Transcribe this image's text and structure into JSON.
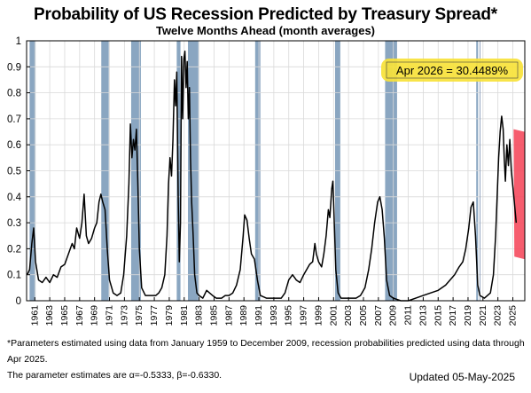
{
  "chart_data": {
    "type": "line",
    "title": "Probability of US Recession Predicted by Treasury Spread*",
    "subtitle": "Twelve Months Ahead (month averages)",
    "xlim": [
      1959.9,
      2026.6
    ],
    "ylim": [
      0,
      1
    ],
    "yticks": [
      "0",
      "0.1",
      "0.2",
      "0.3",
      "0.4",
      "0.5",
      "0.6",
      "0.7",
      "0.8",
      "0.9",
      "1"
    ],
    "xticks": [
      "1961",
      "1963",
      "1965",
      "1967",
      "1969",
      "1971",
      "1973",
      "1975",
      "1977",
      "1979",
      "1981",
      "1983",
      "1985",
      "1987",
      "1989",
      "1991",
      "1993",
      "1995",
      "1997",
      "1999",
      "2001",
      "2003",
      "2005",
      "2007",
      "2009",
      "2011",
      "2013",
      "2015",
      "2017",
      "2019",
      "2021",
      "2023",
      "2025"
    ],
    "grid": true,
    "recessions": [
      [
        1960.3,
        1961.1
      ],
      [
        1969.9,
        1970.9
      ],
      [
        1973.9,
        1975.2
      ],
      [
        1980.0,
        1980.5
      ],
      [
        1981.5,
        1982.9
      ],
      [
        1990.5,
        1991.2
      ],
      [
        2001.2,
        2001.9
      ],
      [
        2007.9,
        2009.5
      ],
      [
        2020.1,
        2020.35
      ]
    ],
    "series": [
      {
        "color": "#000000",
        "points": [
          [
            1960.0,
            0.1
          ],
          [
            1960.3,
            0.12
          ],
          [
            1960.6,
            0.22
          ],
          [
            1960.85,
            0.28
          ],
          [
            1961.1,
            0.15
          ],
          [
            1961.5,
            0.08
          ],
          [
            1962.0,
            0.07
          ],
          [
            1962.5,
            0.09
          ],
          [
            1963.0,
            0.07
          ],
          [
            1963.5,
            0.1
          ],
          [
            1964.0,
            0.09
          ],
          [
            1964.5,
            0.13
          ],
          [
            1965.0,
            0.14
          ],
          [
            1965.5,
            0.18
          ],
          [
            1966.0,
            0.22
          ],
          [
            1966.3,
            0.2
          ],
          [
            1966.6,
            0.28
          ],
          [
            1967.0,
            0.24
          ],
          [
            1967.3,
            0.3
          ],
          [
            1967.6,
            0.41
          ],
          [
            1967.9,
            0.25
          ],
          [
            1968.2,
            0.22
          ],
          [
            1968.6,
            0.24
          ],
          [
            1969.0,
            0.28
          ],
          [
            1969.3,
            0.3
          ],
          [
            1969.6,
            0.38
          ],
          [
            1969.85,
            0.41
          ],
          [
            1970.1,
            0.38
          ],
          [
            1970.4,
            0.35
          ],
          [
            1970.7,
            0.2
          ],
          [
            1971.0,
            0.08
          ],
          [
            1971.5,
            0.03
          ],
          [
            1972.0,
            0.02
          ],
          [
            1972.5,
            0.03
          ],
          [
            1972.9,
            0.1
          ],
          [
            1973.3,
            0.25
          ],
          [
            1973.6,
            0.45
          ],
          [
            1973.8,
            0.68
          ],
          [
            1974.0,
            0.55
          ],
          [
            1974.2,
            0.62
          ],
          [
            1974.4,
            0.58
          ],
          [
            1974.6,
            0.66
          ],
          [
            1974.8,
            0.45
          ],
          [
            1975.0,
            0.2
          ],
          [
            1975.3,
            0.05
          ],
          [
            1975.8,
            0.02
          ],
          [
            1976.5,
            0.02
          ],
          [
            1977.2,
            0.02
          ],
          [
            1977.6,
            0.03
          ],
          [
            1978.0,
            0.05
          ],
          [
            1978.4,
            0.1
          ],
          [
            1978.7,
            0.25
          ],
          [
            1978.9,
            0.45
          ],
          [
            1979.1,
            0.55
          ],
          [
            1979.3,
            0.48
          ],
          [
            1979.5,
            0.62
          ],
          [
            1979.7,
            0.85
          ],
          [
            1979.85,
            0.75
          ],
          [
            1980.0,
            0.88
          ],
          [
            1980.2,
            0.4
          ],
          [
            1980.35,
            0.15
          ],
          [
            1980.5,
            0.3
          ],
          [
            1980.65,
            0.94
          ],
          [
            1980.8,
            0.7
          ],
          [
            1980.95,
            0.93
          ],
          [
            1981.1,
            0.96
          ],
          [
            1981.25,
            0.82
          ],
          [
            1981.4,
            0.92
          ],
          [
            1981.55,
            0.7
          ],
          [
            1981.7,
            0.82
          ],
          [
            1981.85,
            0.55
          ],
          [
            1982.0,
            0.38
          ],
          [
            1982.2,
            0.25
          ],
          [
            1982.4,
            0.1
          ],
          [
            1982.7,
            0.03
          ],
          [
            1983.0,
            0.02
          ],
          [
            1983.5,
            0.01
          ],
          [
            1984.0,
            0.04
          ],
          [
            1984.4,
            0.03
          ],
          [
            1984.8,
            0.02
          ],
          [
            1985.3,
            0.01
          ],
          [
            1986.0,
            0.01
          ],
          [
            1986.5,
            0.02
          ],
          [
            1987.0,
            0.02
          ],
          [
            1987.5,
            0.03
          ],
          [
            1988.0,
            0.06
          ],
          [
            1988.5,
            0.12
          ],
          [
            1988.9,
            0.25
          ],
          [
            1989.1,
            0.33
          ],
          [
            1989.4,
            0.31
          ],
          [
            1989.7,
            0.24
          ],
          [
            1990.0,
            0.18
          ],
          [
            1990.4,
            0.16
          ],
          [
            1990.8,
            0.08
          ],
          [
            1991.2,
            0.02
          ],
          [
            1992.0,
            0.01
          ],
          [
            1993.0,
            0.01
          ],
          [
            1994.0,
            0.01
          ],
          [
            1994.5,
            0.03
          ],
          [
            1995.0,
            0.08
          ],
          [
            1995.5,
            0.1
          ],
          [
            1996.0,
            0.08
          ],
          [
            1996.5,
            0.07
          ],
          [
            1997.0,
            0.1
          ],
          [
            1997.4,
            0.12
          ],
          [
            1997.8,
            0.14
          ],
          [
            1998.2,
            0.15
          ],
          [
            1998.5,
            0.22
          ],
          [
            1998.7,
            0.18
          ],
          [
            1999.0,
            0.15
          ],
          [
            1999.4,
            0.13
          ],
          [
            1999.7,
            0.18
          ],
          [
            2000.0,
            0.25
          ],
          [
            2000.3,
            0.35
          ],
          [
            2000.5,
            0.32
          ],
          [
            2000.75,
            0.43
          ],
          [
            2000.9,
            0.46
          ],
          [
            2001.1,
            0.3
          ],
          [
            2001.3,
            0.12
          ],
          [
            2001.6,
            0.03
          ],
          [
            2002.0,
            0.01
          ],
          [
            2003.0,
            0.01
          ],
          [
            2004.0,
            0.01
          ],
          [
            2004.6,
            0.02
          ],
          [
            2005.2,
            0.05
          ],
          [
            2005.7,
            0.12
          ],
          [
            2006.1,
            0.2
          ],
          [
            2006.5,
            0.3
          ],
          [
            2006.9,
            0.38
          ],
          [
            2007.2,
            0.4
          ],
          [
            2007.5,
            0.35
          ],
          [
            2007.8,
            0.24
          ],
          [
            2008.1,
            0.08
          ],
          [
            2008.5,
            0.02
          ],
          [
            2009.0,
            0.01
          ],
          [
            2010.0,
            0.0
          ],
          [
            2011.0,
            0.0
          ],
          [
            2012.0,
            0.01
          ],
          [
            2013.0,
            0.02
          ],
          [
            2014.0,
            0.03
          ],
          [
            2015.0,
            0.04
          ],
          [
            2016.0,
            0.06
          ],
          [
            2016.6,
            0.08
          ],
          [
            2017.2,
            0.1
          ],
          [
            2017.8,
            0.13
          ],
          [
            2018.3,
            0.15
          ],
          [
            2018.7,
            0.2
          ],
          [
            2019.1,
            0.28
          ],
          [
            2019.4,
            0.36
          ],
          [
            2019.7,
            0.38
          ],
          [
            2020.0,
            0.25
          ],
          [
            2020.3,
            0.06
          ],
          [
            2020.6,
            0.02
          ],
          [
            2021.2,
            0.01
          ],
          [
            2022.0,
            0.03
          ],
          [
            2022.4,
            0.1
          ],
          [
            2022.7,
            0.25
          ],
          [
            2022.9,
            0.4
          ],
          [
            2023.1,
            0.55
          ],
          [
            2023.3,
            0.65
          ],
          [
            2023.5,
            0.71
          ],
          [
            2023.7,
            0.66
          ],
          [
            2023.85,
            0.55
          ],
          [
            2024.0,
            0.46
          ],
          [
            2024.2,
            0.6
          ],
          [
            2024.4,
            0.52
          ],
          [
            2024.6,
            0.62
          ],
          [
            2024.8,
            0.5
          ],
          [
            2025.0,
            0.44
          ],
          [
            2025.2,
            0.38
          ],
          [
            2025.45,
            0.3
          ]
        ]
      }
    ],
    "forecast_marker_x": 2020.6,
    "annotation": "Apr 2026 = 30.4489%"
  },
  "footnote_line1": "*Parameters estimated using data from January 1959 to December 2009, recession probabilities predicted using data through Apr 2025.",
  "footnote_line2": "The parameter estimates are α=-0.5333, β=-0.6330.",
  "updated": "Updated 05-May-2025",
  "colors": {
    "recession": "#8aa6c1",
    "grid": "#d9d9d9",
    "line": "#000000",
    "highlight_yellow": "#f7e23a",
    "highlight_red": "#f5475a"
  }
}
